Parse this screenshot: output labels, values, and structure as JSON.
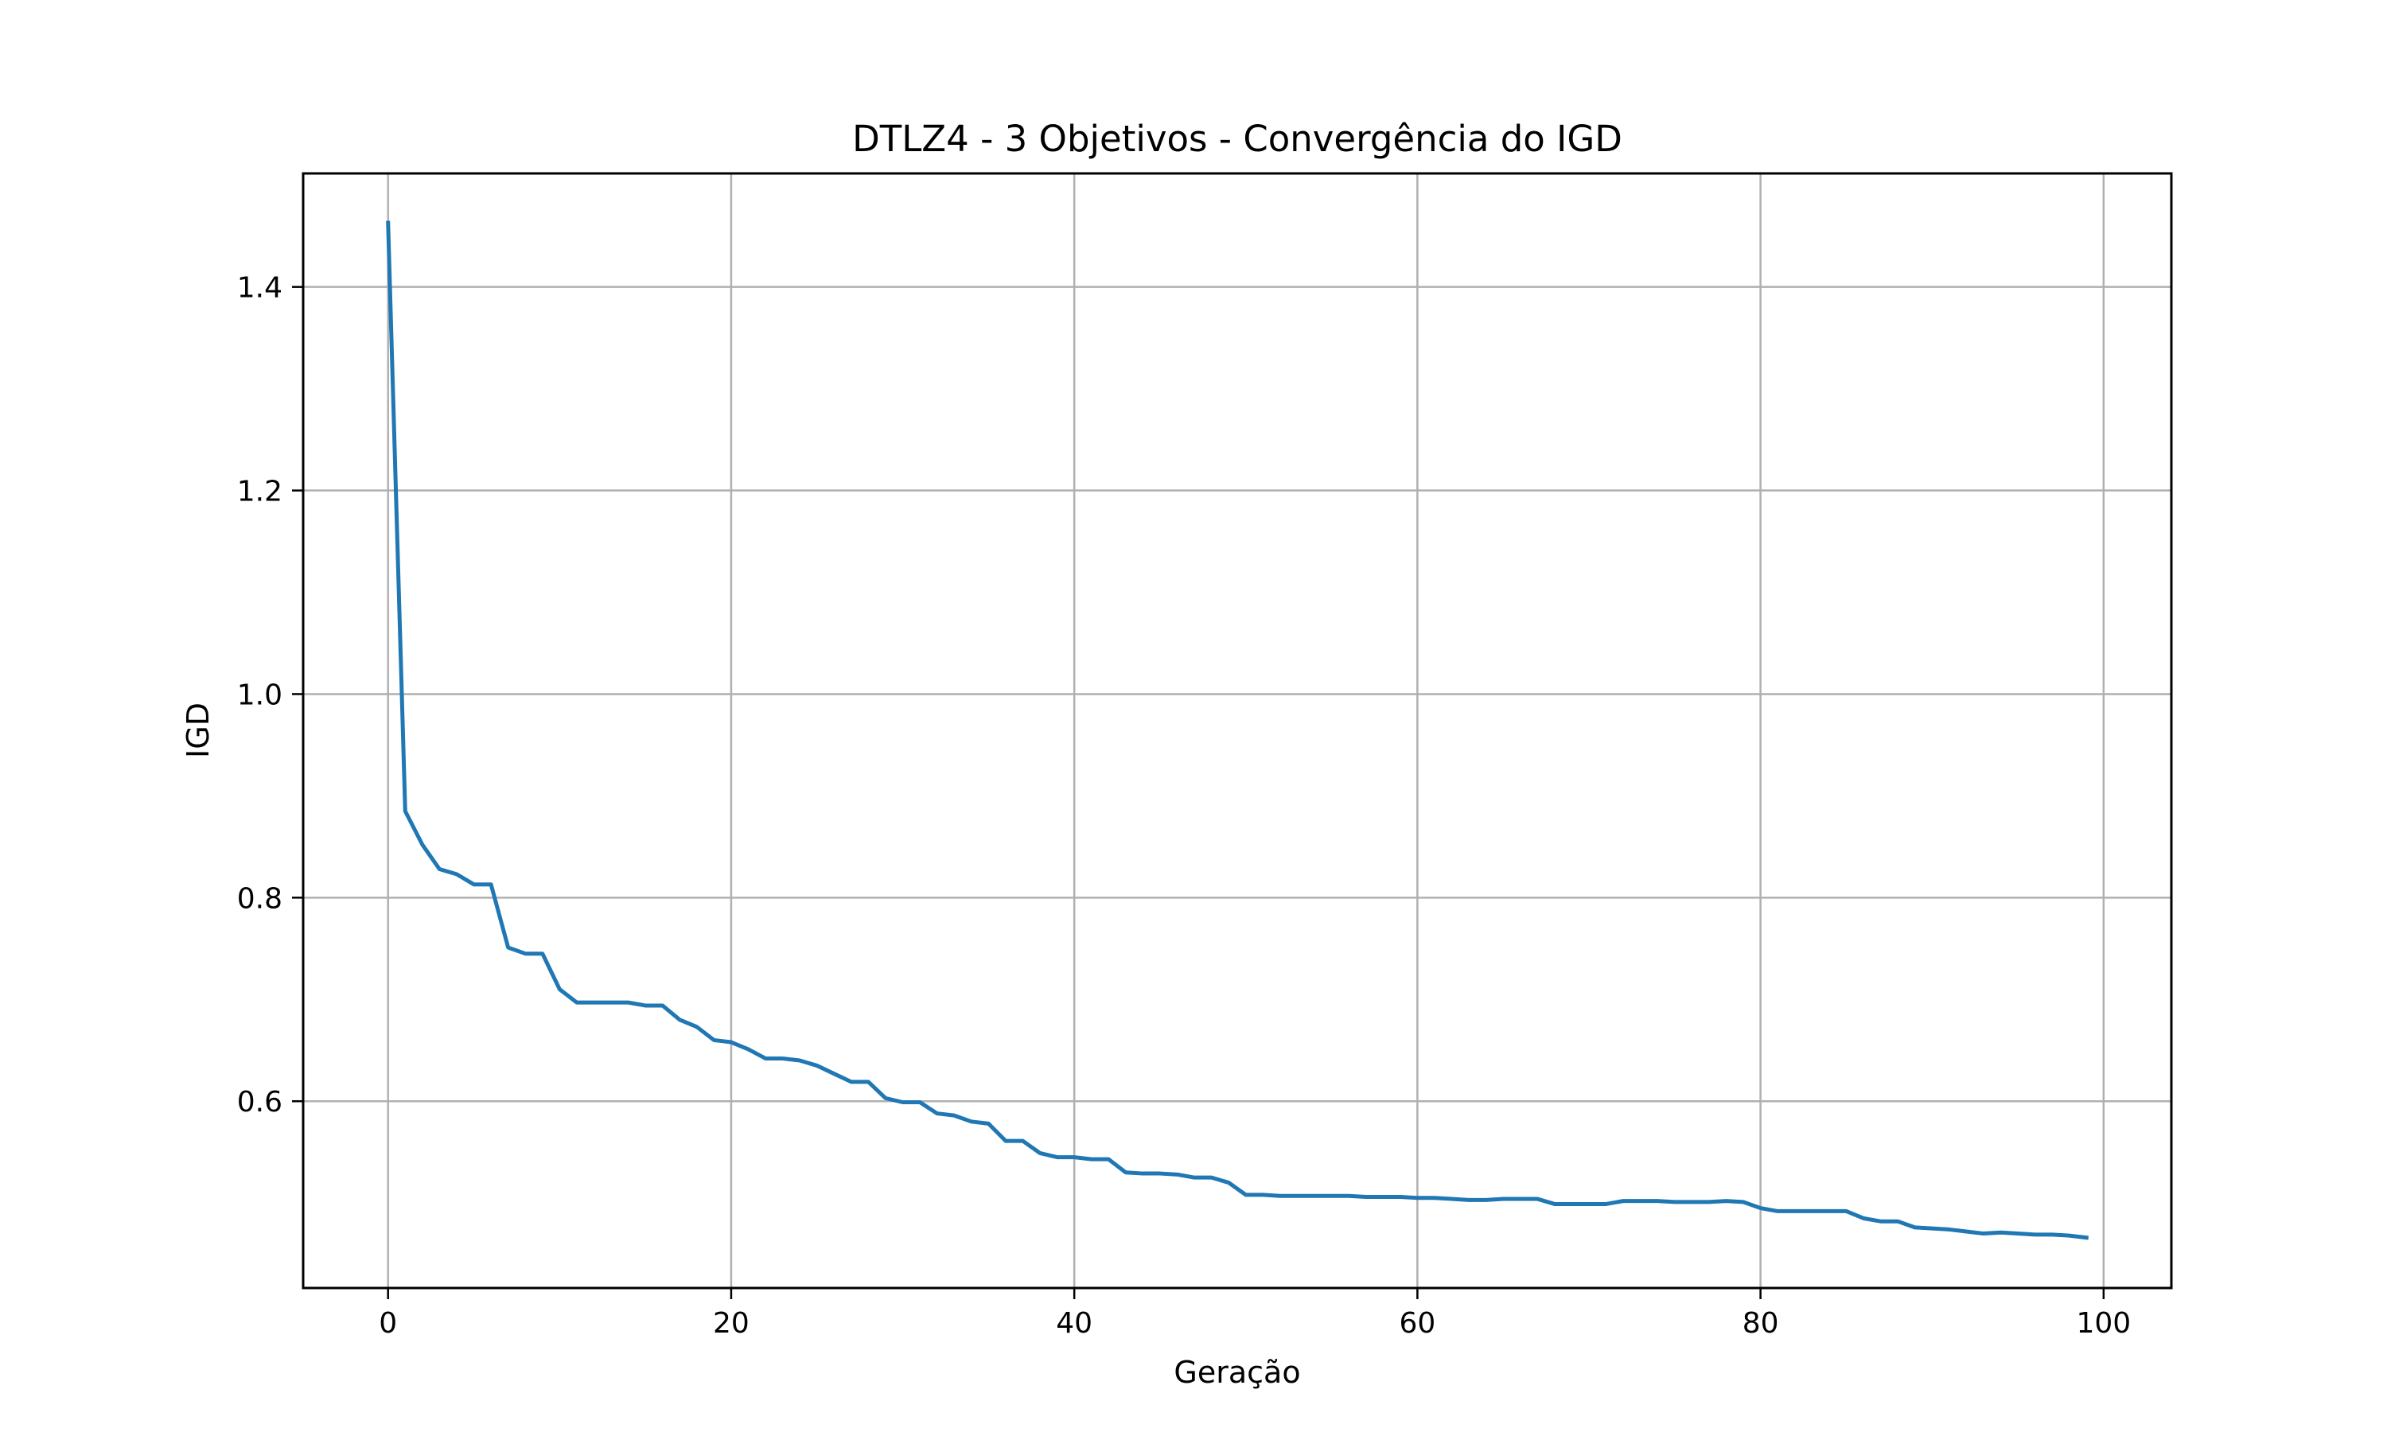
{
  "chart_data": {
    "type": "line",
    "title": "DTLZ4 - 3 Objetivos - Convergência do IGD",
    "xlabel": "Geração",
    "ylabel": "IGD",
    "xlim": [
      -4.95,
      103.95
    ],
    "ylim": [
      0.4165,
      1.5115
    ],
    "xticks": [
      0,
      20,
      40,
      60,
      80,
      100
    ],
    "yticks": [
      0.6,
      0.8,
      1.0,
      1.2,
      1.4
    ],
    "xtick_labels": [
      "0",
      "20",
      "40",
      "60",
      "80",
      "100"
    ],
    "ytick_labels": [
      "0.6",
      "0.8",
      "1.0",
      "1.2",
      "1.4"
    ],
    "grid": true,
    "line_color": "#1f77b4",
    "series": [
      {
        "x": [
          0,
          1,
          2,
          3,
          4,
          5,
          6,
          7,
          8,
          9,
          10,
          11,
          12,
          13,
          14,
          15,
          16,
          17,
          18,
          19,
          20,
          21,
          22,
          23,
          24,
          25,
          26,
          27,
          28,
          29,
          30,
          31,
          32,
          33,
          34,
          35,
          36,
          37,
          38,
          39,
          40,
          41,
          42,
          43,
          44,
          45,
          46,
          47,
          48,
          49,
          50,
          51,
          52,
          53,
          54,
          55,
          56,
          57,
          58,
          59,
          60,
          61,
          62,
          63,
          64,
          65,
          66,
          67,
          68,
          69,
          70,
          71,
          72,
          73,
          74,
          75,
          76,
          77,
          78,
          79,
          80,
          81,
          82,
          83,
          84,
          85,
          86,
          87,
          88,
          89,
          90,
          91,
          92,
          93,
          94,
          95,
          96,
          97,
          98,
          99
        ],
        "y": [
          1.463,
          0.885,
          0.852,
          0.828,
          0.823,
          0.813,
          0.813,
          0.751,
          0.745,
          0.745,
          0.71,
          0.697,
          0.697,
          0.697,
          0.697,
          0.694,
          0.694,
          0.68,
          0.673,
          0.66,
          0.658,
          0.651,
          0.642,
          0.642,
          0.64,
          0.635,
          0.627,
          0.619,
          0.619,
          0.603,
          0.599,
          0.599,
          0.588,
          0.586,
          0.58,
          0.578,
          0.561,
          0.561,
          0.549,
          0.545,
          0.545,
          0.543,
          0.543,
          0.53,
          0.529,
          0.529,
          0.528,
          0.525,
          0.525,
          0.52,
          0.508,
          0.508,
          0.507,
          0.507,
          0.507,
          0.507,
          0.507,
          0.506,
          0.506,
          0.506,
          0.505,
          0.505,
          0.504,
          0.503,
          0.503,
          0.504,
          0.504,
          0.504,
          0.499,
          0.499,
          0.499,
          0.499,
          0.502,
          0.502,
          0.502,
          0.501,
          0.501,
          0.501,
          0.502,
          0.501,
          0.495,
          0.492,
          0.492,
          0.492,
          0.492,
          0.492,
          0.485,
          0.482,
          0.482,
          0.476,
          0.475,
          0.474,
          0.472,
          0.47,
          0.471,
          0.47,
          0.469,
          0.469,
          0.468,
          0.466
        ]
      }
    ]
  }
}
